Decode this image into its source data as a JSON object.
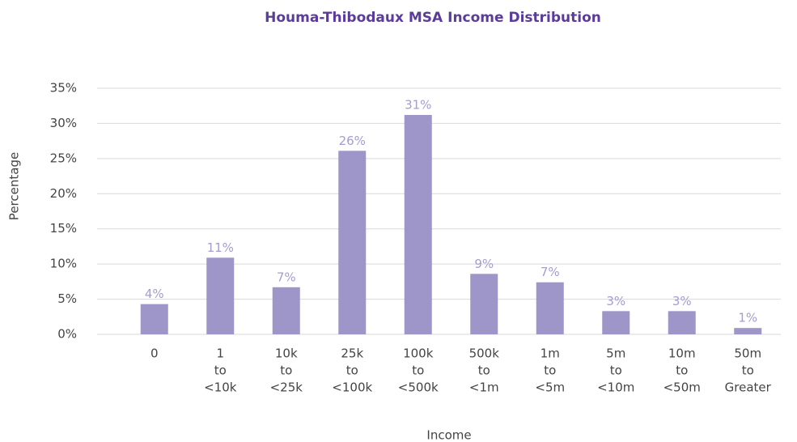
{
  "chart_data": {
    "type": "bar",
    "title": "Houma-Thibodaux MSA Income Distribution",
    "x_label": "Income",
    "y_label": "Percentage",
    "categories": [
      [
        "0"
      ],
      [
        "1",
        "to",
        "<10k"
      ],
      [
        "10k",
        "to",
        "<25k"
      ],
      [
        "25k",
        "to",
        "<100k"
      ],
      [
        "100k",
        "to",
        "<500k"
      ],
      [
        "500k",
        "to",
        "<1m"
      ],
      [
        "1m",
        "to",
        "<5m"
      ],
      [
        "5m",
        "to",
        "<10m"
      ],
      [
        "10m",
        "to",
        "<50m"
      ],
      [
        "50m",
        "to",
        "Greater"
      ]
    ],
    "values": [
      4.3,
      10.9,
      6.7,
      26.1,
      31.2,
      8.6,
      7.4,
      3.3,
      3.3,
      0.9
    ],
    "value_labels": [
      "4%",
      "11%",
      "7%",
      "26%",
      "31%",
      "9%",
      "7%",
      "3%",
      "3%",
      "1%"
    ],
    "color": "#9e95c8",
    "ylim": [
      0,
      35
    ],
    "yticks": [
      {
        "value": 0,
        "label": "0%"
      },
      {
        "value": 5,
        "label": "5%"
      },
      {
        "value": 10,
        "label": "10%"
      },
      {
        "value": 15,
        "label": "15%"
      },
      {
        "value": 20,
        "label": "20%"
      },
      {
        "value": 25,
        "label": "25%"
      },
      {
        "value": 30,
        "label": "30%"
      },
      {
        "value": 35,
        "label": "35%"
      }
    ],
    "grid": true
  }
}
